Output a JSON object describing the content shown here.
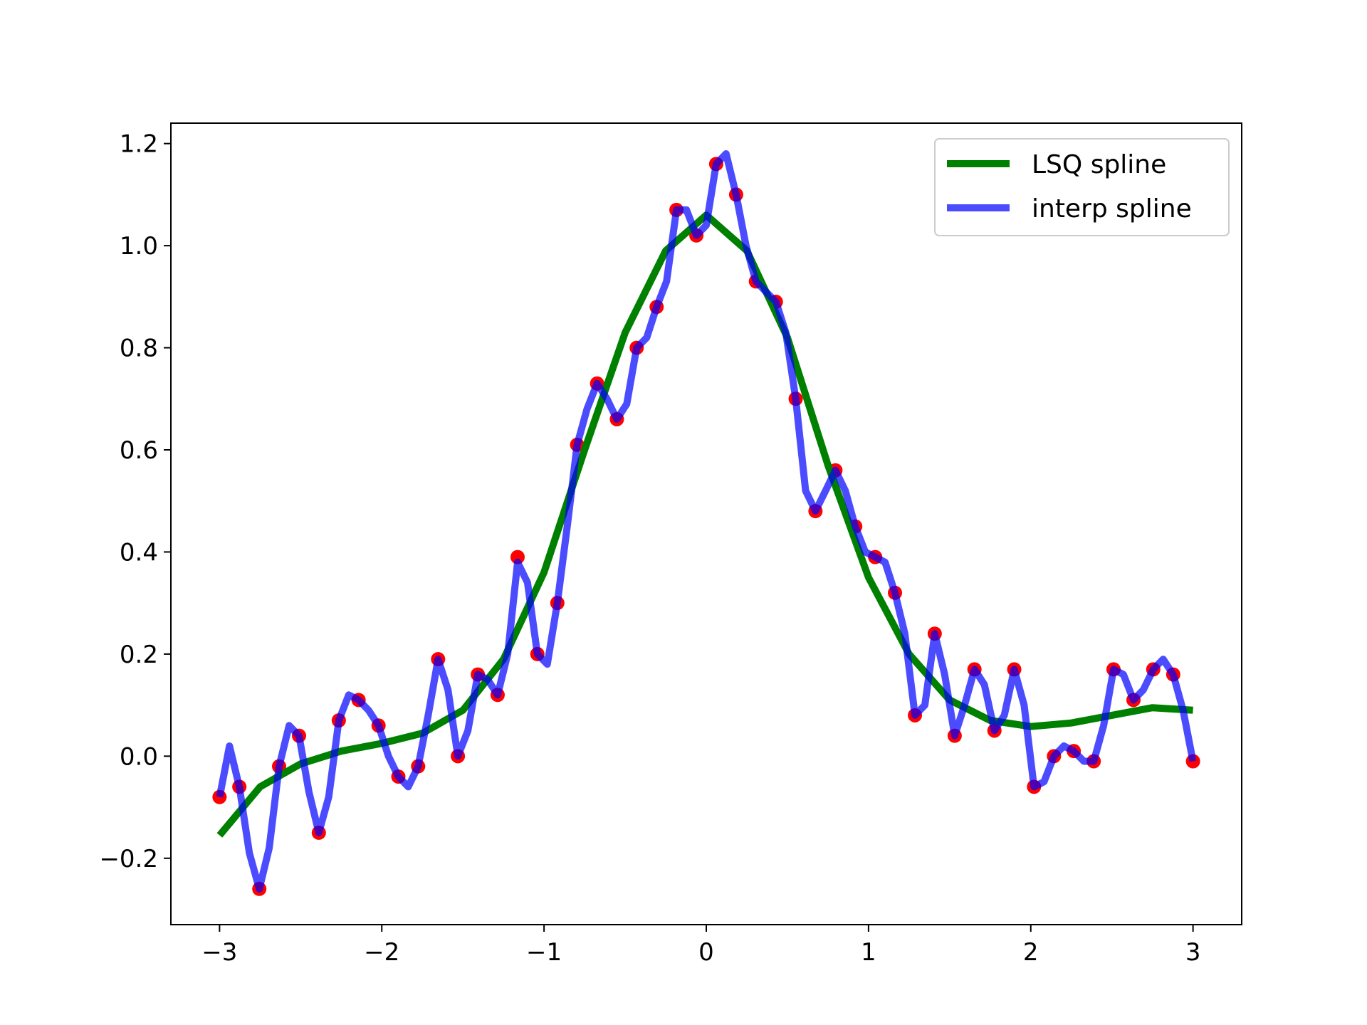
{
  "chart_data": {
    "type": "line",
    "title": "",
    "xlabel": "",
    "ylabel": "",
    "xlim": [
      -3.3,
      3.3
    ],
    "ylim": [
      -0.33,
      1.24
    ],
    "grid": false,
    "legend": {
      "placement": "top-right"
    },
    "xticks": [
      -3,
      -2,
      -1,
      0,
      1,
      2,
      3
    ],
    "xtick_labels": [
      "−3",
      "−2",
      "−1",
      "0",
      "1",
      "2",
      "3"
    ],
    "yticks": [
      -0.2,
      0.0,
      0.2,
      0.4,
      0.6,
      0.8,
      1.0,
      1.2
    ],
    "ytick_labels": [
      "−0.2",
      "0.0",
      "0.2",
      "0.4",
      "0.6",
      "0.8",
      "1.0",
      "1.2"
    ],
    "points": {
      "color": "#ff0000",
      "x": [
        -3.0,
        -2.878,
        -2.755,
        -2.633,
        -2.51,
        -2.388,
        -2.265,
        -2.143,
        -2.02,
        -1.898,
        -1.776,
        -1.653,
        -1.531,
        -1.408,
        -1.286,
        -1.163,
        -1.041,
        -0.918,
        -0.796,
        -0.673,
        -0.551,
        -0.429,
        -0.306,
        -0.184,
        -0.061,
        0.061,
        0.184,
        0.306,
        0.429,
        0.551,
        0.673,
        0.796,
        0.918,
        1.041,
        1.163,
        1.286,
        1.408,
        1.531,
        1.653,
        1.776,
        1.898,
        2.02,
        2.143,
        2.265,
        2.388,
        2.51,
        2.633,
        2.755,
        2.878,
        3.0
      ],
      "y": [
        -0.08,
        -0.06,
        -0.26,
        -0.02,
        0.04,
        -0.15,
        0.07,
        0.11,
        0.06,
        -0.04,
        -0.02,
        0.19,
        0.0,
        0.16,
        0.12,
        0.39,
        0.2,
        0.3,
        0.61,
        0.73,
        0.66,
        0.8,
        0.88,
        1.07,
        1.02,
        1.16,
        1.1,
        0.93,
        0.89,
        0.7,
        0.48,
        0.56,
        0.45,
        0.39,
        0.32,
        0.08,
        0.24,
        0.04,
        0.17,
        0.05,
        0.17,
        -0.06,
        0.0,
        0.01,
        -0.01,
        0.17,
        0.11,
        0.17,
        0.16,
        -0.01
      ]
    },
    "series": [
      {
        "name": "LSQ spline",
        "color": "#008000",
        "x": [
          -3.0,
          -2.75,
          -2.5,
          -2.25,
          -2.0,
          -1.75,
          -1.5,
          -1.25,
          -1.0,
          -0.75,
          -0.5,
          -0.25,
          0.0,
          0.25,
          0.5,
          0.75,
          1.0,
          1.25,
          1.5,
          1.75,
          2.0,
          2.25,
          2.5,
          2.75,
          3.0
        ],
        "y": [
          -0.155,
          -0.06,
          -0.015,
          0.01,
          0.025,
          0.045,
          0.09,
          0.19,
          0.36,
          0.6,
          0.83,
          0.99,
          1.06,
          0.99,
          0.82,
          0.57,
          0.35,
          0.2,
          0.11,
          0.07,
          0.058,
          0.065,
          0.08,
          0.095,
          0.09
        ]
      },
      {
        "name": "interp spline",
        "color": "#0000ff",
        "opacity": 0.7,
        "x": [
          -3.0,
          -2.939,
          -2.878,
          -2.816,
          -2.755,
          -2.694,
          -2.633,
          -2.571,
          -2.51,
          -2.449,
          -2.388,
          -2.327,
          -2.265,
          -2.204,
          -2.143,
          -2.082,
          -2.02,
          -1.959,
          -1.898,
          -1.837,
          -1.776,
          -1.714,
          -1.653,
          -1.592,
          -1.531,
          -1.469,
          -1.408,
          -1.347,
          -1.286,
          -1.224,
          -1.163,
          -1.102,
          -1.041,
          -0.98,
          -0.918,
          -0.857,
          -0.796,
          -0.735,
          -0.673,
          -0.612,
          -0.551,
          -0.49,
          -0.429,
          -0.367,
          -0.306,
          -0.245,
          -0.184,
          -0.122,
          -0.061,
          0.0,
          0.061,
          0.122,
          0.184,
          0.245,
          0.306,
          0.367,
          0.429,
          0.49,
          0.551,
          0.612,
          0.673,
          0.735,
          0.796,
          0.857,
          0.918,
          0.98,
          1.041,
          1.102,
          1.163,
          1.224,
          1.286,
          1.347,
          1.408,
          1.469,
          1.531,
          1.592,
          1.653,
          1.714,
          1.776,
          1.837,
          1.898,
          1.959,
          2.02,
          2.082,
          2.143,
          2.204,
          2.265,
          2.327,
          2.388,
          2.449,
          2.51,
          2.571,
          2.633,
          2.694,
          2.755,
          2.816,
          2.878,
          2.939,
          3.0
        ],
        "y": [
          -0.08,
          0.02,
          -0.06,
          -0.19,
          -0.26,
          -0.18,
          -0.02,
          0.06,
          0.04,
          -0.07,
          -0.15,
          -0.08,
          0.07,
          0.12,
          0.11,
          0.09,
          0.06,
          0.0,
          -0.04,
          -0.06,
          -0.02,
          0.08,
          0.19,
          0.13,
          0.0,
          0.05,
          0.16,
          0.15,
          0.12,
          0.2,
          0.38,
          0.34,
          0.2,
          0.18,
          0.3,
          0.45,
          0.61,
          0.68,
          0.73,
          0.7,
          0.66,
          0.69,
          0.8,
          0.82,
          0.88,
          0.93,
          1.07,
          1.07,
          1.02,
          1.04,
          1.16,
          1.18,
          1.1,
          1.0,
          0.93,
          0.91,
          0.89,
          0.83,
          0.7,
          0.52,
          0.48,
          0.52,
          0.56,
          0.52,
          0.45,
          0.4,
          0.39,
          0.38,
          0.32,
          0.24,
          0.08,
          0.1,
          0.24,
          0.16,
          0.04,
          0.1,
          0.17,
          0.14,
          0.05,
          0.08,
          0.17,
          0.1,
          -0.06,
          -0.05,
          0.0,
          0.02,
          0.01,
          -0.01,
          -0.01,
          0.06,
          0.17,
          0.16,
          0.11,
          0.13,
          0.17,
          0.19,
          0.16,
          0.09,
          -0.01
        ]
      }
    ]
  }
}
